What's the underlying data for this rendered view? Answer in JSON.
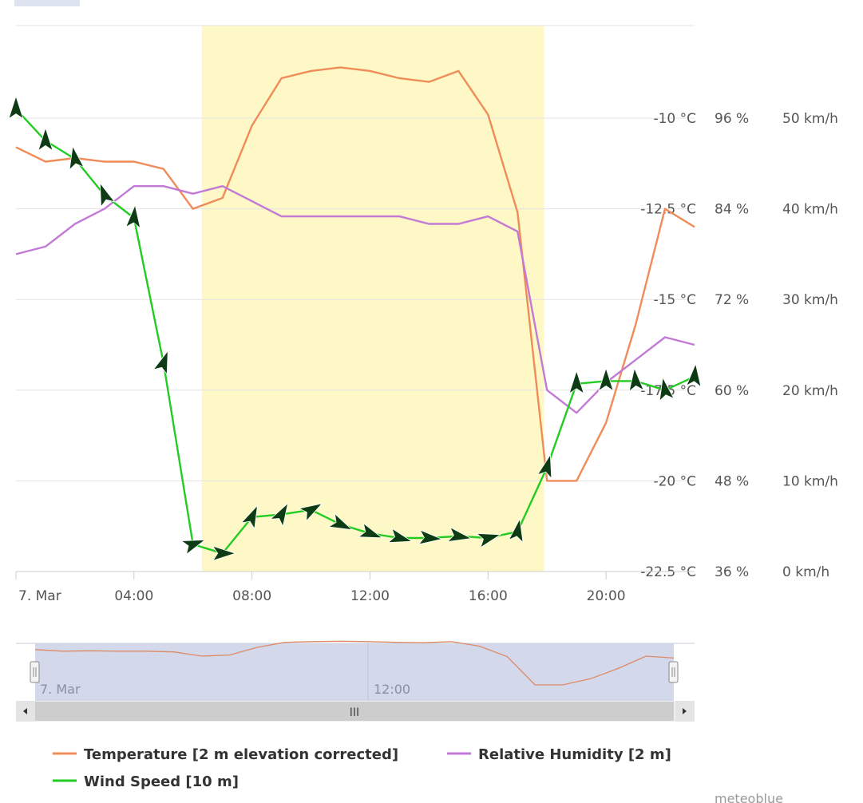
{
  "chart_data": {
    "type": "line",
    "x_unit": "hour of day (7 Mar)",
    "x_tick_labels": [
      "7. Mar",
      "04:00",
      "08:00",
      "12:00",
      "16:00",
      "20:00"
    ],
    "x_ticks": [
      0,
      4,
      8,
      12,
      16,
      20
    ],
    "xlim": [
      0,
      23
    ],
    "daylight_band": [
      6.3,
      17.9
    ],
    "axes": {
      "temperature": {
        "ticks": [
          -10,
          -12.5,
          -15,
          -17.5,
          -20,
          -22.5
        ],
        "labels": [
          "-10 °C",
          "-12.5 °C",
          "-15 °C",
          "-17.5 °C",
          "-20 °C",
          "-22.5 °C"
        ],
        "ylim": [
          -22.5,
          -10
        ]
      },
      "humidity": {
        "ticks": [
          96,
          84,
          72,
          60,
          48,
          36
        ],
        "labels": [
          "96 %",
          "84 %",
          "72 %",
          "60 %",
          "48 %",
          "36 %"
        ],
        "ylim": [
          36,
          96
        ]
      },
      "wind": {
        "ticks": [
          50,
          40,
          30,
          20,
          10,
          0
        ],
        "labels": [
          "50 km/h",
          "40 km/h",
          "30 km/h",
          "20 km/h",
          "10 km/h",
          "0 km/h"
        ],
        "ylim": [
          0,
          50
        ]
      }
    },
    "series": [
      {
        "name": "Temperature [2 m elevation corrected]",
        "axis": "temperature",
        "color": "#ef8c59",
        "x": [
          0,
          1,
          2,
          3,
          4,
          5,
          6,
          7,
          8,
          9,
          10,
          11,
          12,
          13,
          14,
          15,
          16,
          17,
          18,
          19,
          20,
          21,
          22,
          23
        ],
        "values": [
          -10.8,
          -11.2,
          -11.1,
          -11.2,
          -11.2,
          -11.4,
          -12.5,
          -12.2,
          -10.2,
          -8.9,
          -8.7,
          -8.6,
          -8.7,
          -8.9,
          -9.0,
          -8.7,
          -9.9,
          -12.6,
          -20.0,
          -20.0,
          -18.4,
          -15.7,
          -12.5,
          -13.0
        ]
      },
      {
        "name": "Relative Humidity [2 m]",
        "axis": "humidity",
        "color": "#c27ad6",
        "x": [
          0,
          1,
          2,
          3,
          4,
          5,
          6,
          7,
          8,
          9,
          10,
          11,
          12,
          13,
          14,
          15,
          16,
          17,
          18,
          19,
          20,
          21,
          22,
          23
        ],
        "values": [
          78,
          79,
          82,
          84,
          87,
          87,
          86,
          87,
          85,
          83,
          83,
          83,
          83,
          83,
          82,
          82,
          83,
          81,
          60,
          57,
          61,
          64,
          67,
          66
        ]
      },
      {
        "name": "Wind Speed [10 m]",
        "axis": "wind",
        "color": "#22cc22",
        "x": [
          0,
          1,
          2,
          3,
          4,
          5,
          6,
          7,
          8,
          9,
          10,
          11,
          12,
          13,
          14,
          15,
          16,
          17,
          18,
          19,
          20,
          21,
          22,
          23
        ],
        "values": [
          51,
          47.5,
          45.5,
          41.5,
          39,
          23,
          3,
          2,
          6,
          6.3,
          6.8,
          5.2,
          4.2,
          3.7,
          3.7,
          3.9,
          3.7,
          4.4,
          11.5,
          20.7,
          21,
          21,
          20,
          21.5
        ],
        "direction_deg": [
          180,
          180,
          170,
          160,
          185,
          200,
          250,
          270,
          205,
          210,
          240,
          295,
          290,
          285,
          275,
          280,
          255,
          190,
          195,
          180,
          180,
          175,
          170,
          185
        ]
      }
    ],
    "grid": true,
    "legend": "bottom-left"
  },
  "navigator": {
    "labels": [
      "7. Mar",
      "12:00"
    ],
    "scrollbar_grip": "III"
  },
  "credit": "meteoblue"
}
